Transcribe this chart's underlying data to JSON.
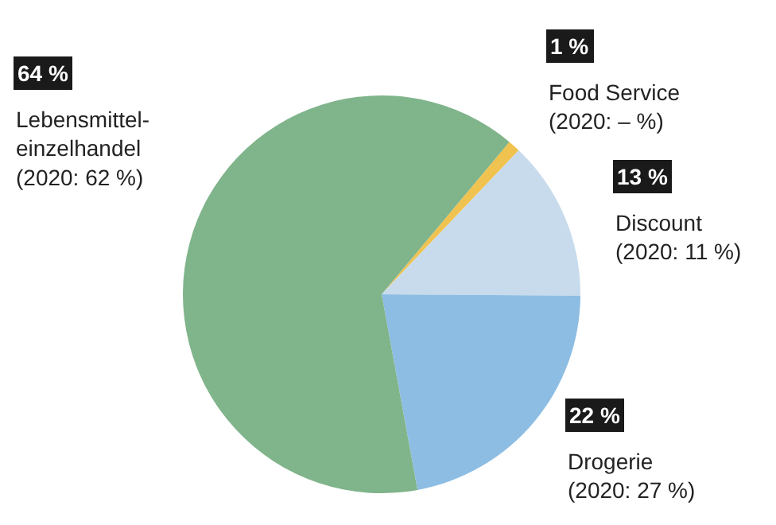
{
  "chart_data": {
    "type": "pie",
    "categories": [
      "Food Service",
      "Discount",
      "Drogerie",
      "Lebensmittel-\neinzelhandel"
    ],
    "values": [
      1,
      13,
      22,
      64
    ],
    "colors": [
      "#f0c24f",
      "#c7dbec",
      "#8dbde3",
      "#80b48b"
    ],
    "value_labels": [
      "1 %",
      "13 %",
      "22 %",
      "64 %"
    ],
    "annotations": [
      "(2020: – %)",
      "(2020: 11 %)",
      "(2020: 27 %)",
      "(2020: 62 %)"
    ],
    "legend": false
  }
}
